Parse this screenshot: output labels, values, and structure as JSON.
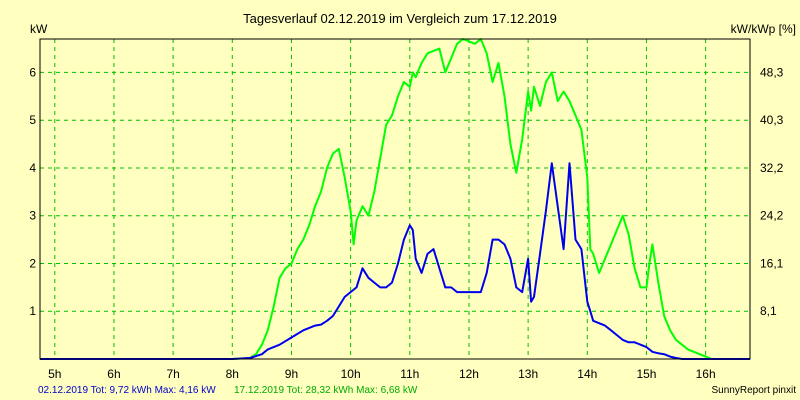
{
  "chart_data": {
    "type": "line",
    "title": "Tagesverlauf 02.12.2019 im Vergleich zum 17.12.2019",
    "ylabel_left": "kW",
    "ylabel_right": "kW/kWp [%]",
    "x_ticks": [
      "5h",
      "6h",
      "7h",
      "8h",
      "9h",
      "10h",
      "11h",
      "12h",
      "13h",
      "14h",
      "15h",
      "16h"
    ],
    "x_tick_hours": [
      5,
      6,
      7,
      8,
      9,
      10,
      11,
      12,
      13,
      14,
      15,
      16
    ],
    "xlim": [
      4.75,
      16.75
    ],
    "y_ticks_left": [
      "1",
      "2",
      "3",
      "4",
      "5",
      "6"
    ],
    "y_tick_values_left": [
      1,
      2,
      3,
      4,
      5,
      6
    ],
    "y_ticks_right": [
      "8,1",
      "16,1",
      "24,2",
      "32,2",
      "40,3",
      "48,3"
    ],
    "ylim": [
      0,
      6.7
    ],
    "grid": true,
    "series": [
      {
        "name": "17.12.2019",
        "color": "#00ff00",
        "x": [
          4.75,
          7.5,
          8.0,
          8.3,
          8.4,
          8.5,
          8.6,
          8.7,
          8.8,
          8.9,
          9.0,
          9.1,
          9.2,
          9.3,
          9.4,
          9.5,
          9.6,
          9.7,
          9.8,
          9.9,
          10.0,
          10.05,
          10.1,
          10.2,
          10.3,
          10.4,
          10.5,
          10.6,
          10.7,
          10.8,
          10.9,
          11.0,
          11.05,
          11.1,
          11.2,
          11.3,
          11.4,
          11.5,
          11.6,
          11.7,
          11.8,
          11.9,
          12.0,
          12.1,
          12.2,
          12.3,
          12.4,
          12.5,
          12.6,
          12.7,
          12.8,
          12.9,
          13.0,
          13.05,
          13.1,
          13.2,
          13.3,
          13.4,
          13.5,
          13.6,
          13.7,
          13.8,
          13.9,
          14.0,
          14.05,
          14.1,
          14.2,
          14.3,
          14.4,
          14.5,
          14.6,
          14.7,
          14.8,
          14.9,
          15.0,
          15.05,
          15.1,
          15.2,
          15.3,
          15.4,
          15.5,
          15.6,
          15.7,
          15.8,
          15.9,
          16.0,
          16.1,
          16.2,
          16.3,
          16.4,
          16.5,
          16.75
        ],
        "y": [
          0,
          0,
          0,
          0.02,
          0.1,
          0.3,
          0.6,
          1.1,
          1.7,
          1.9,
          2.0,
          2.3,
          2.5,
          2.8,
          3.2,
          3.5,
          4.0,
          4.3,
          4.4,
          3.8,
          3.1,
          2.4,
          2.9,
          3.2,
          3.0,
          3.5,
          4.2,
          4.9,
          5.1,
          5.5,
          5.8,
          5.7,
          6.0,
          5.9,
          6.2,
          6.4,
          6.45,
          6.5,
          6.0,
          6.3,
          6.6,
          6.7,
          6.65,
          6.6,
          6.7,
          6.4,
          5.8,
          6.2,
          5.5,
          4.5,
          3.9,
          4.6,
          5.6,
          5.2,
          5.7,
          5.3,
          5.8,
          6.0,
          5.4,
          5.6,
          5.4,
          5.1,
          4.8,
          3.8,
          2.3,
          2.2,
          1.8,
          2.1,
          2.4,
          2.7,
          3.0,
          2.6,
          1.9,
          1.5,
          1.5,
          2.0,
          2.4,
          1.6,
          0.9,
          0.6,
          0.4,
          0.3,
          0.2,
          0.15,
          0.1,
          0.05,
          0,
          0,
          0,
          0,
          0,
          0
        ]
      },
      {
        "name": "02.12.2019",
        "color": "#0000ee",
        "x": [
          4.75,
          8.0,
          8.3,
          8.5,
          8.6,
          8.8,
          9.0,
          9.2,
          9.4,
          9.5,
          9.6,
          9.7,
          9.8,
          9.9,
          10.0,
          10.1,
          10.2,
          10.3,
          10.4,
          10.5,
          10.6,
          10.7,
          10.8,
          10.9,
          11.0,
          11.05,
          11.1,
          11.2,
          11.3,
          11.4,
          11.5,
          11.6,
          11.7,
          11.8,
          11.9,
          12.0,
          12.2,
          12.3,
          12.4,
          12.5,
          12.6,
          12.7,
          12.8,
          12.9,
          13.0,
          13.05,
          13.1,
          13.2,
          13.3,
          13.4,
          13.5,
          13.6,
          13.7,
          13.8,
          13.9,
          14.0,
          14.05,
          14.1,
          14.2,
          14.3,
          14.4,
          14.5,
          14.6,
          14.7,
          14.8,
          14.9,
          15.0,
          15.1,
          15.2,
          15.3,
          15.4,
          15.5,
          15.6,
          16.0,
          16.75
        ],
        "y": [
          0,
          0,
          0.02,
          0.1,
          0.2,
          0.3,
          0.45,
          0.6,
          0.7,
          0.72,
          0.8,
          0.9,
          1.1,
          1.3,
          1.4,
          1.5,
          1.9,
          1.7,
          1.6,
          1.5,
          1.5,
          1.6,
          2.0,
          2.5,
          2.8,
          2.7,
          2.1,
          1.8,
          2.2,
          2.3,
          1.9,
          1.5,
          1.5,
          1.4,
          1.4,
          1.4,
          1.4,
          1.8,
          2.5,
          2.5,
          2.4,
          2.1,
          1.5,
          1.4,
          2.1,
          1.2,
          1.3,
          2.2,
          3.1,
          4.1,
          3.2,
          2.3,
          4.1,
          2.5,
          2.3,
          1.2,
          1.0,
          0.8,
          0.75,
          0.7,
          0.6,
          0.5,
          0.4,
          0.35,
          0.35,
          0.3,
          0.25,
          0.15,
          0.12,
          0.1,
          0.05,
          0.02,
          0,
          0,
          0
        ]
      }
    ],
    "footer": {
      "blue_info": "02.12.2019 Tot: 9,72 kWh Max: 4,16 kW",
      "green_info": "17.12.2019 Tot: 28,32 kWh Max: 6,68 kW",
      "credit": "SunnyReport pinxit"
    }
  }
}
